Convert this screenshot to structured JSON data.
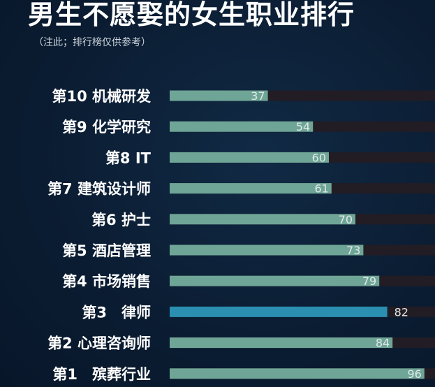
{
  "chart_data": {
    "type": "bar",
    "orientation": "horizontal",
    "title": "男生不愿娶的女生职业排行",
    "subtitle": "（注此；排行榜仅供参考）",
    "categories": [
      "第10 机械研发",
      "第9 化学研究",
      "第8 IT",
      "第7 建筑设计师",
      "第6 护士",
      "第5 酒店管理",
      "第4 市场销售",
      "第3　律师",
      "第2 心理咨询师",
      "第1　殡葬行业"
    ],
    "values": [
      37,
      54,
      60,
      61,
      70,
      73,
      79,
      82,
      84,
      96
    ],
    "value_labels": [
      "37",
      "54",
      "60",
      "61",
      "70",
      "73",
      "79",
      "82",
      "84",
      "96"
    ],
    "highlight_index": 7,
    "xlim": [
      0,
      100
    ],
    "grid": false,
    "colors": {
      "bar": "#6fa596",
      "highlight_bar": "#2a8fb0",
      "track": "#221c24",
      "value_text": "#dfe9e8",
      "highlight_value_text": "#4a6c86"
    }
  }
}
